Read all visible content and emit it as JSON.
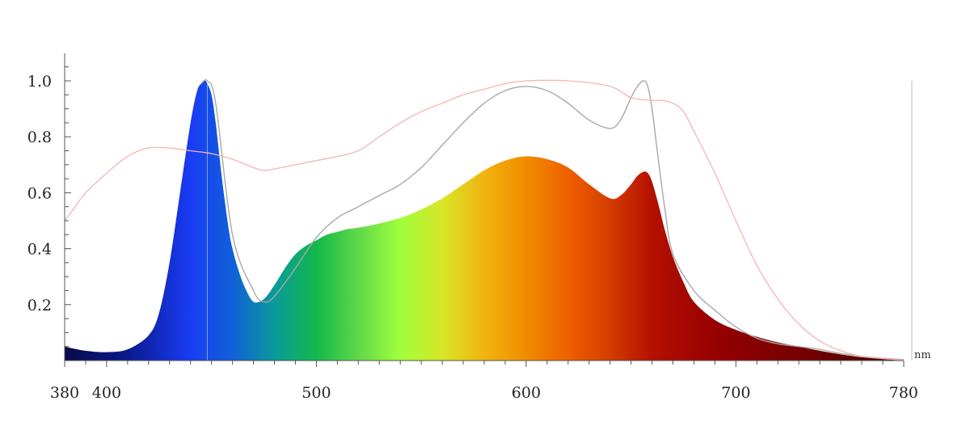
{
  "chart_data": {
    "type": "area",
    "xlabel_unit": "nm",
    "xlim": [
      380,
      780
    ],
    "ylim": [
      0,
      1.1
    ],
    "x_ticks": [
      {
        "value": 380,
        "label": "380"
      },
      {
        "value": 400,
        "label": "400"
      },
      {
        "value": 500,
        "label": "500"
      },
      {
        "value": 600,
        "label": "600"
      },
      {
        "value": 700,
        "label": "700"
      },
      {
        "value": 780,
        "label": "780"
      }
    ],
    "y_ticks": [
      {
        "value": 0.2,
        "label": "0.2"
      },
      {
        "value": 0.4,
        "label": "0.4"
      },
      {
        "value": 0.6,
        "label": "0.6"
      },
      {
        "value": 0.8,
        "label": "0.8"
      },
      {
        "value": 1.0,
        "label": "1.0"
      }
    ],
    "series": [
      {
        "style": "spectrum-fill",
        "x": [
          380,
          390,
          400,
          410,
          420,
          425,
          430,
          435,
          440,
          443,
          445,
          447,
          448,
          450,
          452,
          455,
          458,
          460,
          463,
          466,
          470,
          475,
          480,
          485,
          490,
          495,
          500,
          505,
          510,
          515,
          520,
          530,
          540,
          550,
          560,
          570,
          580,
          590,
          600,
          610,
          620,
          630,
          640,
          645,
          650,
          653,
          656,
          658,
          660,
          663,
          666,
          670,
          675,
          680,
          690,
          700,
          710,
          720,
          730,
          740,
          750,
          760,
          770,
          780
        ],
        "values": [
          0.05,
          0.035,
          0.03,
          0.04,
          0.09,
          0.17,
          0.35,
          0.6,
          0.85,
          0.96,
          0.99,
          1.0,
          0.99,
          0.95,
          0.85,
          0.65,
          0.48,
          0.4,
          0.32,
          0.26,
          0.21,
          0.22,
          0.27,
          0.33,
          0.38,
          0.41,
          0.43,
          0.45,
          0.46,
          0.47,
          0.475,
          0.49,
          0.51,
          0.54,
          0.58,
          0.63,
          0.68,
          0.715,
          0.73,
          0.72,
          0.69,
          0.63,
          0.58,
          0.59,
          0.63,
          0.66,
          0.675,
          0.67,
          0.64,
          0.56,
          0.47,
          0.37,
          0.28,
          0.21,
          0.145,
          0.11,
          0.085,
          0.065,
          0.05,
          0.035,
          0.022,
          0.012,
          0.006,
          0.002
        ],
        "color_stops": [
          {
            "x": 380,
            "color": "#0a0a4a"
          },
          {
            "x": 410,
            "color": "#0a1a8c"
          },
          {
            "x": 440,
            "color": "#1a3cf5"
          },
          {
            "x": 460,
            "color": "#1060d8"
          },
          {
            "x": 480,
            "color": "#0a9a9a"
          },
          {
            "x": 500,
            "color": "#12b84a"
          },
          {
            "x": 520,
            "color": "#60d84a"
          },
          {
            "x": 540,
            "color": "#a0ff3c"
          },
          {
            "x": 560,
            "color": "#d8e628"
          },
          {
            "x": 580,
            "color": "#f0b410"
          },
          {
            "x": 600,
            "color": "#f08c00"
          },
          {
            "x": 620,
            "color": "#ee6000"
          },
          {
            "x": 640,
            "color": "#d43c00"
          },
          {
            "x": 660,
            "color": "#b41000"
          },
          {
            "x": 690,
            "color": "#960000"
          },
          {
            "x": 740,
            "color": "#6e0000"
          },
          {
            "x": 780,
            "color": "#3c0000"
          }
        ]
      },
      {
        "style": "gray-line",
        "color": "#a8a8a8",
        "x": [
          445,
          448,
          452,
          460,
          470,
          475,
          480,
          490,
          500,
          510,
          520,
          530,
          540,
          550,
          560,
          570,
          580,
          590,
          600,
          610,
          620,
          630,
          640,
          645,
          650,
          653,
          656,
          658,
          660,
          663,
          666,
          670,
          680,
          690,
          700,
          710,
          720,
          730,
          740,
          750,
          760,
          770,
          780
        ],
        "values": [
          0.99,
          1.0,
          0.92,
          0.45,
          0.25,
          0.21,
          0.23,
          0.33,
          0.44,
          0.51,
          0.55,
          0.59,
          0.63,
          0.69,
          0.77,
          0.85,
          0.92,
          0.965,
          0.98,
          0.965,
          0.92,
          0.86,
          0.83,
          0.86,
          0.94,
          0.98,
          1.0,
          0.98,
          0.9,
          0.72,
          0.55,
          0.38,
          0.25,
          0.18,
          0.12,
          0.08,
          0.06,
          0.05,
          0.04,
          0.025,
          0.015,
          0.008,
          0.004
        ]
      },
      {
        "style": "pink-line",
        "color": "#f4b4b4",
        "x": [
          380,
          385,
          390,
          400,
          410,
          420,
          430,
          440,
          450,
          460,
          470,
          475,
          480,
          490,
          500,
          510,
          520,
          530,
          540,
          550,
          560,
          570,
          580,
          590,
          600,
          620,
          640,
          650,
          660,
          665,
          670,
          675,
          680,
          690,
          700,
          710,
          720,
          730,
          740,
          750,
          760,
          770,
          780
        ],
        "values": [
          0.5,
          0.55,
          0.6,
          0.67,
          0.73,
          0.76,
          0.76,
          0.75,
          0.74,
          0.72,
          0.69,
          0.68,
          0.685,
          0.7,
          0.715,
          0.73,
          0.75,
          0.8,
          0.85,
          0.89,
          0.92,
          0.95,
          0.97,
          0.99,
          1.0,
          1.0,
          0.98,
          0.94,
          0.93,
          0.93,
          0.92,
          0.89,
          0.82,
          0.67,
          0.5,
          0.34,
          0.22,
          0.13,
          0.07,
          0.035,
          0.015,
          0.007,
          0.002
        ]
      }
    ],
    "marker_line_x": 448
  }
}
